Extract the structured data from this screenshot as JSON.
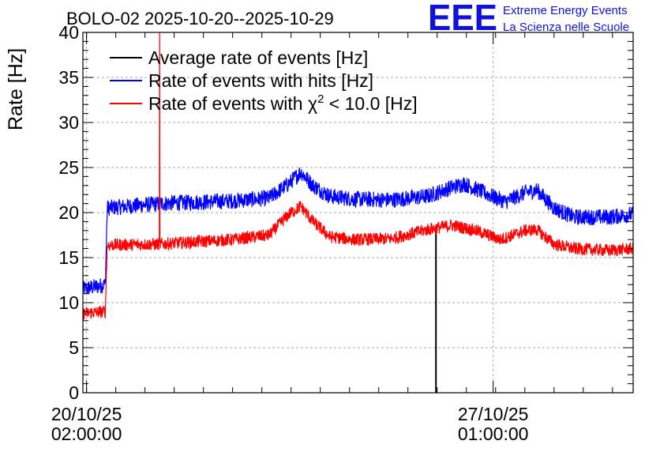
{
  "chart_data": {
    "type": "line",
    "title": "BOLO-02 2025-10-20--2025-10-29",
    "xlabel": "",
    "ylabel": "Rate [Hz]",
    "ylim": [
      0,
      40
    ],
    "yticks": [
      0,
      5,
      10,
      15,
      20,
      25,
      30,
      35,
      40
    ],
    "grid": true,
    "legend_position": "top-left",
    "x_range_hours": [
      -1.5,
      224.5
    ],
    "xticks": [
      {
        "hours": 0,
        "date": "20/10/25",
        "time": "02:00:00"
      },
      {
        "hours": 167,
        "date": "27/10/25",
        "time": "01:00:00"
      }
    ],
    "series": [
      {
        "name": "Average rate of events [Hz]",
        "name_prefix": "Average rate of events [Hz]",
        "color": "#000000",
        "points": [
          [
            143.5,
            0
          ],
          [
            143.5,
            18.4
          ]
        ],
        "noise": 0
      },
      {
        "name": "Rate of events with hits [Hz]",
        "name_prefix": "Rate of events with hits [Hz]",
        "color": "#0000ff",
        "points": [
          [
            -1.5,
            11.5
          ],
          [
            7.7,
            12.0
          ],
          [
            8.5,
            20.5
          ],
          [
            30,
            21.0
          ],
          [
            60,
            21.3
          ],
          [
            75,
            21.6
          ],
          [
            83,
            23.2
          ],
          [
            88,
            24.5
          ],
          [
            93,
            23.0
          ],
          [
            100,
            21.8
          ],
          [
            110,
            21.5
          ],
          [
            125,
            21.4
          ],
          [
            140,
            21.8
          ],
          [
            150,
            22.8
          ],
          [
            155,
            23.2
          ],
          [
            165,
            22.0
          ],
          [
            172,
            21.2
          ],
          [
            180,
            22.2
          ],
          [
            185,
            22.5
          ],
          [
            192,
            20.5
          ],
          [
            200,
            19.5
          ],
          [
            215,
            19.5
          ],
          [
            224.5,
            19.8
          ]
        ],
        "noise": 0.9
      },
      {
        "name": "Rate of events with χ² < 10.0 [Hz]",
        "name_prefix": "Rate of events with χ",
        "name_sup": "2",
        "name_suffix": " < 10.0 [Hz]",
        "color": "#ff0000",
        "points": [
          [
            -1.5,
            8.8
          ],
          [
            7.7,
            9.0
          ],
          [
            8.5,
            16.4
          ],
          [
            30,
            16.5
          ],
          [
            60,
            17.0
          ],
          [
            75,
            17.5
          ],
          [
            83,
            19.8
          ],
          [
            88,
            20.7
          ],
          [
            93,
            19.0
          ],
          [
            100,
            17.3
          ],
          [
            110,
            17.0
          ],
          [
            125,
            17.1
          ],
          [
            140,
            18.1
          ],
          [
            150,
            18.6
          ],
          [
            160,
            18.0
          ],
          [
            170,
            17.0
          ],
          [
            180,
            18.0
          ],
          [
            185,
            18.1
          ],
          [
            192,
            16.5
          ],
          [
            200,
            16.0
          ],
          [
            215,
            15.8
          ],
          [
            224.5,
            16.0
          ]
        ],
        "noise": 0.7,
        "spikes": [
          {
            "hours": 30,
            "value": 40
          }
        ]
      }
    ]
  },
  "logo": {
    "mark": "EEE",
    "line1": "Extreme Energy Events",
    "line2": "La Scienza nelle Scuole",
    "color": "#1111dd"
  }
}
